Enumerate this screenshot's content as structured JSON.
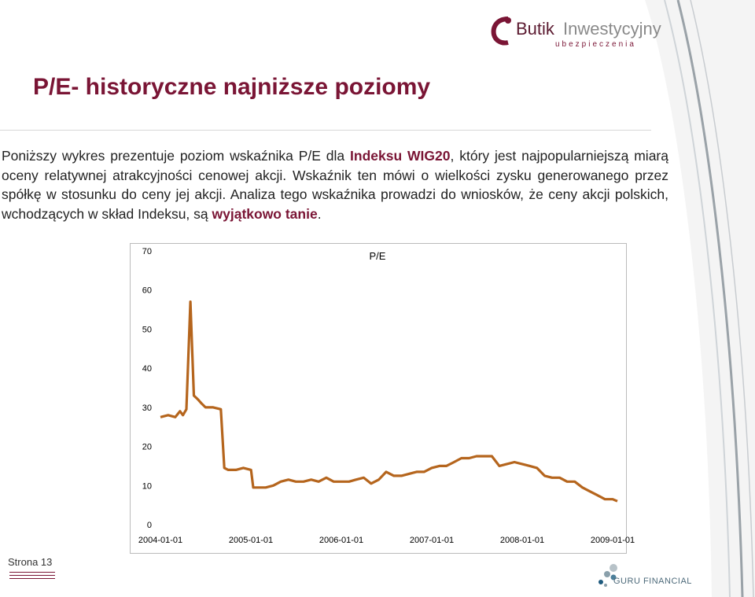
{
  "logo": {
    "name_part1": "Butik",
    "name_part2": "Inwestycyjny",
    "subtitle": "ubezpieczenia"
  },
  "slide": {
    "title": "P/E- historyczne najniższe poziomy",
    "paragraph": {
      "p1": "Poniższy wykres prezentuje poziom wskaźnika P/E dla ",
      "highlight1": "Indeksu WIG20",
      "p2": ", który jest najpopularniejszą miarą oceny relatywnej atrakcyjności cenowej akcji. Wskaźnik ten mówi o wielkości zysku generowanego przez spółkę w stosunku do ceny jej akcji. Analiza tego wskaźnika prowadzi do wniosków, że ceny akcji polskich, wchodzących w skład Indeksu, są ",
      "highlight2": "wyjątkowo tanie",
      "p3": "."
    }
  },
  "chart_data": {
    "type": "line",
    "title": "P/E",
    "xlabel": "",
    "ylabel": "",
    "ylim": [
      0,
      70
    ],
    "y_ticks": [
      "0",
      "10",
      "20",
      "30",
      "40",
      "50",
      "60",
      "70"
    ],
    "x_ticks": [
      "2004-01-01",
      "2005-01-01",
      "2006-01-01",
      "2007-01-01",
      "2008-01-01",
      "2009-01-01"
    ],
    "legend": "none",
    "grid": false,
    "series": [
      {
        "color": "#b5651d",
        "x": [
          "2004-01-01",
          "2004-02-01",
          "2004-03-01",
          "2004-03-20",
          "2004-04-01",
          "2004-04-15",
          "2004-05-01",
          "2004-05-15",
          "2004-06-01",
          "2004-06-15",
          "2004-07-01",
          "2004-08-01",
          "2004-09-01",
          "2004-09-15",
          "2004-10-01",
          "2004-11-01",
          "2004-12-01",
          "2005-01-01",
          "2005-01-10",
          "2005-02-01",
          "2005-03-01",
          "2005-04-01",
          "2005-05-01",
          "2005-06-01",
          "2005-07-01",
          "2005-08-01",
          "2005-09-01",
          "2005-10-01",
          "2005-11-01",
          "2005-12-01",
          "2006-01-01",
          "2006-02-01",
          "2006-03-01",
          "2006-04-01",
          "2006-05-01",
          "2006-06-01",
          "2006-07-01",
          "2006-08-01",
          "2006-09-01",
          "2006-10-01",
          "2006-11-01",
          "2006-12-01",
          "2007-01-01",
          "2007-02-01",
          "2007-03-01",
          "2007-04-01",
          "2007-05-01",
          "2007-06-01",
          "2007-07-01",
          "2007-08-01",
          "2007-09-01",
          "2007-10-01",
          "2007-11-01",
          "2007-12-01",
          "2008-01-01",
          "2008-02-01",
          "2008-03-01",
          "2008-04-01",
          "2008-05-01",
          "2008-06-01",
          "2008-07-01",
          "2008-08-01",
          "2008-09-01",
          "2008-10-01",
          "2008-11-01",
          "2008-12-01",
          "2009-01-01",
          "2009-01-20"
        ],
        "y": [
          27.5,
          28,
          27.5,
          29,
          28,
          29.5,
          57,
          33,
          32,
          31,
          30,
          30,
          29.5,
          14.5,
          14,
          14,
          14.5,
          14,
          9.5,
          9.5,
          9.5,
          10,
          11,
          11.5,
          11,
          11,
          11.5,
          11,
          12,
          11,
          11,
          11,
          11.5,
          12,
          10.5,
          11.5,
          13.5,
          12.5,
          12.5,
          13,
          13.5,
          13.5,
          14.5,
          15,
          15,
          16,
          17,
          17,
          17.5,
          17.5,
          17.5,
          15,
          15.5,
          16,
          15.5,
          15,
          14.5,
          12.5,
          12,
          12,
          11,
          11,
          9.5,
          8.5,
          7.5,
          6.5,
          6.5,
          6
        ]
      }
    ]
  },
  "footer": {
    "page": "Strona 13",
    "company": "GURU FINANCIAL"
  }
}
